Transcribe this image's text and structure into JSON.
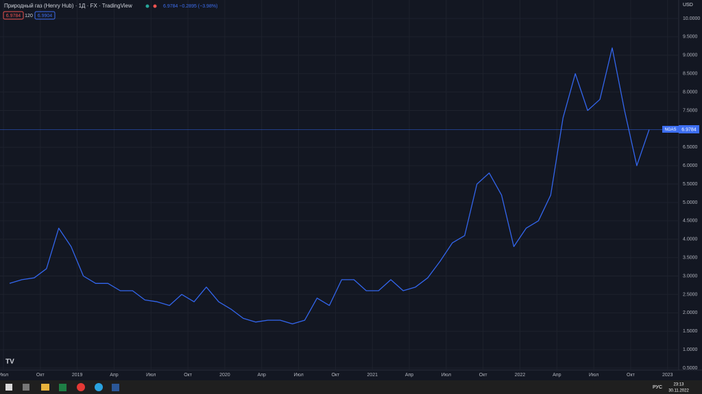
{
  "header": {
    "title": "Природный газ (Henry Hub) · 1Д · FX · TradingView",
    "change": "6.9784 −0.2895 (−3.98%)",
    "bid": "6.9784",
    "spread": "120",
    "ask": "6.9904",
    "currency": "USD",
    "price_tag": "6.9784"
  },
  "taskbar": {
    "lang": "РУС",
    "time": "23:13",
    "date": "30.11.2022"
  },
  "chart_data": {
    "type": "line",
    "x": [
      "2018-07",
      "2018-08",
      "2018-09",
      "2018-10",
      "2018-11",
      "2018-12",
      "2019-01",
      "2019-02",
      "2019-03",
      "2019-04",
      "2019-05",
      "2019-06",
      "2019-07",
      "2019-08",
      "2019-09",
      "2019-10",
      "2019-11",
      "2019-12",
      "2020-01",
      "2020-02",
      "2020-03",
      "2020-04",
      "2020-05",
      "2020-06",
      "2020-07",
      "2020-08",
      "2020-09",
      "2020-10",
      "2020-11",
      "2020-12",
      "2021-01",
      "2021-02",
      "2021-03",
      "2021-04",
      "2021-05",
      "2021-06",
      "2021-07",
      "2021-08",
      "2021-09",
      "2021-10",
      "2021-11",
      "2021-12",
      "2022-01",
      "2022-02",
      "2022-03",
      "2022-04",
      "2022-05",
      "2022-06",
      "2022-07",
      "2022-08",
      "2022-09",
      "2022-10",
      "2022-11"
    ],
    "series": [
      {
        "name": "NGAS",
        "color": "#3366ee",
        "values": [
          2.8,
          2.9,
          2.95,
          3.2,
          4.3,
          3.8,
          3.0,
          2.8,
          2.8,
          2.6,
          2.6,
          2.35,
          2.3,
          2.2,
          2.5,
          2.3,
          2.7,
          2.3,
          2.1,
          1.85,
          1.75,
          1.8,
          1.8,
          1.7,
          1.8,
          2.4,
          2.2,
          2.9,
          2.9,
          2.6,
          2.6,
          2.9,
          2.6,
          2.7,
          2.95,
          3.4,
          3.9,
          4.1,
          5.5,
          5.8,
          5.2,
          3.8,
          4.3,
          4.5,
          5.2,
          7.3,
          8.5,
          7.5,
          7.8,
          9.2,
          7.5,
          6.0,
          6.9784
        ]
      }
    ],
    "xticks": [
      {
        "value": "2018-07",
        "label": "Июл"
      },
      {
        "value": "2018-10",
        "label": "Окт"
      },
      {
        "value": "2019-01",
        "label": "2019"
      },
      {
        "value": "2019-04",
        "label": "Апр"
      },
      {
        "value": "2019-07",
        "label": "Июл"
      },
      {
        "value": "2019-10",
        "label": "Окт"
      },
      {
        "value": "2020-01",
        "label": "2020"
      },
      {
        "value": "2020-04",
        "label": "Апр"
      },
      {
        "value": "2020-07",
        "label": "Июл"
      },
      {
        "value": "2020-10",
        "label": "Окт"
      },
      {
        "value": "2021-01",
        "label": "2021"
      },
      {
        "value": "2021-04",
        "label": "Апр"
      },
      {
        "value": "2021-07",
        "label": "Июл"
      },
      {
        "value": "2021-10",
        "label": "Окт"
      },
      {
        "value": "2022-01",
        "label": "2022"
      },
      {
        "value": "2022-04",
        "label": "Апр"
      },
      {
        "value": "2022-07",
        "label": "Июл"
      },
      {
        "value": "2022-10",
        "label": "Окт"
      },
      {
        "value": "2023-01",
        "label": "2023"
      }
    ],
    "ylim": [
      0.5,
      10
    ],
    "yticks": [
      {
        "value": 0.5,
        "label": "0.5000"
      },
      {
        "value": 1,
        "label": "1.0000"
      },
      {
        "value": 1.5,
        "label": "1.5000"
      },
      {
        "value": 2,
        "label": "2.0000"
      },
      {
        "value": 2.5,
        "label": "2.5000"
      },
      {
        "value": 3,
        "label": "3.0000"
      },
      {
        "value": 3.5,
        "label": "3.5000"
      },
      {
        "value": 4,
        "label": "4.0000"
      },
      {
        "value": 4.5,
        "label": "4.5000"
      },
      {
        "value": 5,
        "label": "5.0000"
      },
      {
        "value": 5.5,
        "label": "5.5000"
      },
      {
        "value": 6,
        "label": "6.0000"
      },
      {
        "value": 6.5,
        "label": "6.5000"
      },
      {
        "value": 7.5,
        "label": "7.5000"
      },
      {
        "value": 8,
        "label": "8.0000"
      },
      {
        "value": 8.5,
        "label": "8.5000"
      },
      {
        "value": 9,
        "label": "9.0000"
      },
      {
        "value": 9.5,
        "label": "9.5000"
      },
      {
        "value": 10,
        "label": "10.0000"
      }
    ],
    "grid": true
  }
}
